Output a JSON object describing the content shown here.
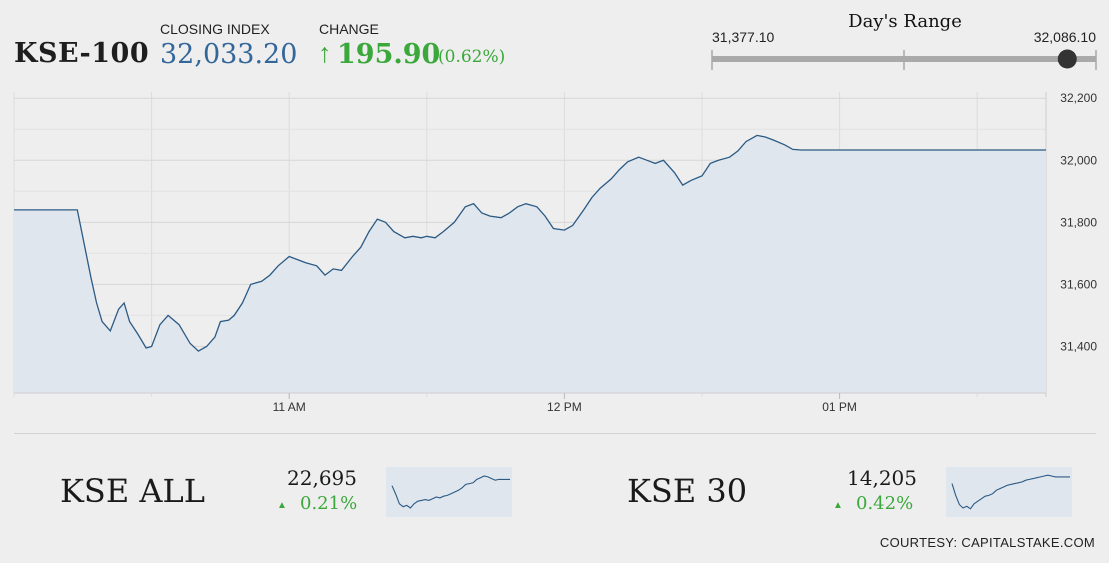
{
  "header": {
    "ticker": "KSE-100",
    "closing_label": "CLOSING INDEX",
    "closing_value": "32,033.20",
    "change_label": "CHANGE",
    "change_arrow": "↑",
    "change_value": "195.90",
    "change_percent": "(0.62%)"
  },
  "days_range": {
    "title": "Day's Range",
    "low": "31,377.10",
    "high": "32,086.10",
    "low_value": 31377.1,
    "high_value": 32086.1,
    "current_value": 32033.2
  },
  "colors": {
    "accent_blue": "#336699",
    "positive_green": "#3aa83a",
    "line": "#2b5a84",
    "fill": "#dfe6ee"
  },
  "chart_data": [
    {
      "type": "area",
      "x_tick_labels": [
        "11 AM",
        "12 PM",
        "01 PM"
      ],
      "x_tick_hours": [
        11,
        12,
        13
      ],
      "x_range_hours": [
        10.0,
        13.75
      ],
      "y_tick_labels": [
        "31,400",
        "31,600",
        "31,800",
        "32,000",
        "32,200"
      ],
      "y_ticks": [
        31400,
        31600,
        31800,
        32000,
        32200
      ],
      "ylim": [
        31250,
        32220
      ],
      "grid": true,
      "x": [
        10.0,
        10.23,
        10.28,
        10.3,
        10.32,
        10.35,
        10.38,
        10.4,
        10.42,
        10.45,
        10.48,
        10.5,
        10.53,
        10.56,
        10.6,
        10.64,
        10.67,
        10.7,
        10.73,
        10.75,
        10.78,
        10.8,
        10.83,
        10.86,
        10.9,
        10.93,
        10.96,
        11.0,
        11.03,
        11.06,
        11.1,
        11.13,
        11.16,
        11.19,
        11.23,
        11.26,
        11.29,
        11.32,
        11.35,
        11.38,
        11.42,
        11.45,
        11.48,
        11.5,
        11.53,
        11.56,
        11.6,
        11.64,
        11.67,
        11.7,
        11.73,
        11.77,
        11.8,
        11.83,
        11.86,
        11.9,
        11.93,
        11.96,
        12.0,
        12.03,
        12.07,
        12.1,
        12.13,
        12.17,
        12.2,
        12.23,
        12.27,
        12.3,
        12.33,
        12.36,
        12.4,
        12.43,
        12.46,
        12.5,
        12.53,
        12.56,
        12.6,
        12.63,
        12.66,
        12.7,
        12.73,
        12.76,
        12.8,
        12.83,
        12.86,
        12.9,
        12.93,
        12.96,
        13.0,
        13.2,
        13.75
      ],
      "values": [
        31840,
        31840,
        31620,
        31540,
        31480,
        31450,
        31520,
        31540,
        31480,
        31440,
        31395,
        31400,
        31470,
        31500,
        31470,
        31410,
        31385,
        31400,
        31430,
        31480,
        31485,
        31500,
        31540,
        31600,
        31610,
        31630,
        31660,
        31690,
        31680,
        31670,
        31660,
        31630,
        31650,
        31645,
        31690,
        31720,
        31770,
        31810,
        31800,
        31770,
        31750,
        31755,
        31750,
        31755,
        31750,
        31770,
        31800,
        31850,
        31860,
        31830,
        31820,
        31815,
        31830,
        31850,
        31860,
        31850,
        31820,
        31780,
        31775,
        31790,
        31840,
        31880,
        31910,
        31940,
        31970,
        31995,
        32010,
        32000,
        31990,
        32000,
        31960,
        31920,
        31935,
        31950,
        31990,
        32000,
        32010,
        32030,
        32060,
        32080,
        32075,
        32065,
        32050,
        32035,
        32033,
        32033,
        32033,
        32033,
        32033.2,
        32033.2,
        32033.2
      ]
    }
  ],
  "indices": [
    {
      "name": "KSE ALL",
      "value": "22,695",
      "triangle": "▲",
      "change": "0.21%",
      "spark": [
        0.35,
        0.55,
        0.78,
        0.85,
        0.82,
        0.88,
        0.78,
        0.72,
        0.7,
        0.68,
        0.7,
        0.66,
        0.62,
        0.64,
        0.6,
        0.58,
        0.54,
        0.5,
        0.46,
        0.4,
        0.32,
        0.3,
        0.28,
        0.2,
        0.16,
        0.12,
        0.14,
        0.18,
        0.22,
        0.2,
        0.2,
        0.2,
        0.2
      ]
    },
    {
      "name": "KSE 30",
      "value": "14,205",
      "triangle": "▲",
      "change": "0.42%",
      "spark": [
        0.3,
        0.58,
        0.8,
        0.88,
        0.84,
        0.9,
        0.78,
        0.72,
        0.66,
        0.6,
        0.58,
        0.54,
        0.46,
        0.42,
        0.38,
        0.34,
        0.32,
        0.3,
        0.28,
        0.26,
        0.22,
        0.2,
        0.18,
        0.16,
        0.14,
        0.12,
        0.1,
        0.12,
        0.14,
        0.14,
        0.14,
        0.14,
        0.14
      ]
    }
  ],
  "footer": {
    "courtesy": "COURTESY: CAPITALSTAKE.COM"
  }
}
